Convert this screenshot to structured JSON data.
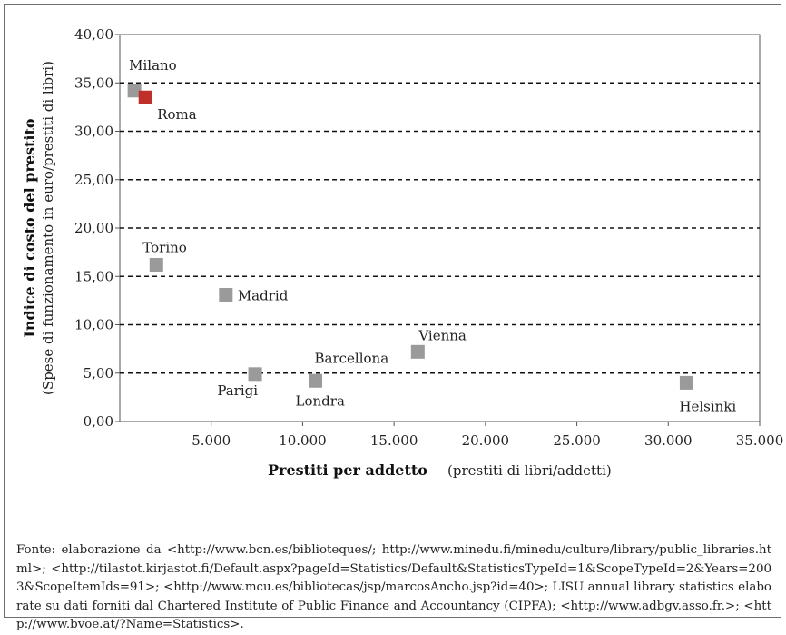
{
  "chart_data": {
    "type": "scatter",
    "title": "",
    "xlabel": "Prestiti per addetto",
    "xlabel_note": "(prestiti di libri/addetti)",
    "ylabel": "Indice di costo del prestito",
    "ylabel_note": "(Spese di funzionamento in euro/prestiti di libri)",
    "xlim": [
      0,
      35000
    ],
    "ylim": [
      0,
      40
    ],
    "x_ticks": [
      "5.000",
      "10.000",
      "15.000",
      "20.000",
      "25.000",
      "30.000",
      "35.000"
    ],
    "x_tick_values": [
      5000,
      10000,
      15000,
      20000,
      25000,
      30000,
      35000
    ],
    "y_ticks": [
      "0,00",
      "5,00",
      "10,00",
      "15,00",
      "20,00",
      "25,00",
      "30,00",
      "35,00",
      "40,00"
    ],
    "y_tick_values": [
      0,
      5,
      10,
      15,
      20,
      25,
      30,
      35,
      40
    ],
    "grid": "horizontal-dashed",
    "points": [
      {
        "label": "Milano",
        "x": 800,
        "y": 34.2,
        "color": "#9a9a9a",
        "label_pos": "above"
      },
      {
        "label": "Roma",
        "x": 1400,
        "y": 33.5,
        "color": "#c0302b",
        "label_pos": "below-right"
      },
      {
        "label": "Torino",
        "x": 2000,
        "y": 16.2,
        "color": "#9a9a9a",
        "label_pos": "above"
      },
      {
        "label": "Madrid",
        "x": 5800,
        "y": 13.1,
        "color": "#9a9a9a",
        "label_pos": "right"
      },
      {
        "label": "Parigi",
        "x": 7400,
        "y": 4.9,
        "color": "#9a9a9a",
        "label_pos": "below-left"
      },
      {
        "label": "Barcellona",
        "x": 10700,
        "y": 4.2,
        "color": "#9a9a9a",
        "label_pos": "above"
      },
      {
        "label": "Londra",
        "x": 10700,
        "y": 4.2,
        "color": "#9a9a9a",
        "label_pos": "below",
        "shared_marker": true
      },
      {
        "label": "Vienna",
        "x": 16300,
        "y": 7.2,
        "color": "#9a9a9a",
        "label_pos": "above"
      },
      {
        "label": "Helsinki",
        "x": 31000,
        "y": 4.0,
        "color": "#9a9a9a",
        "label_pos": "below"
      }
    ]
  },
  "source_note": "Fonte: elaborazione da <http://www.bcn.es/biblioteques/; http://www.minedu.fi/minedu/culture/library/public_libraries.html>; <http://tilastot.kirjastot.fi/Default.aspx?pageId=Statistics/Default&StatisticsTypeId=1&ScopeTypeId=2&Years=2003&ScopeItemIds=91>; <http://www.mcu.es/bibliotecas/jsp/marcosAncho.jsp?id=40>; LISU annual library statistics elaborate su dati forniti dal Chartered Institute of Public Finance and Accountancy (CIPFA); <http://www.adbgv.asso.fr.>; <http://www.bvoe.at/?Name=Statistics>."
}
